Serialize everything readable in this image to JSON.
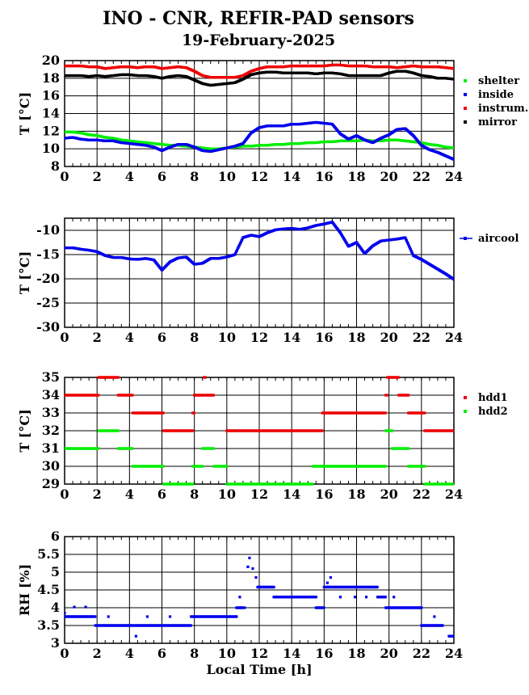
{
  "title": "INO - CNR, REFIR-PAD sensors",
  "subtitle": "19-February-2025",
  "xlabel": "Local Time [h]",
  "chart_data": [
    {
      "type": "scatter",
      "ylabel": "T [°C]",
      "xlim": [
        0,
        24
      ],
      "ylim": [
        8,
        20
      ],
      "xticks": [
        0,
        2,
        4,
        6,
        8,
        10,
        12,
        14,
        16,
        18,
        20,
        22,
        24
      ],
      "yticks": [
        8,
        10,
        12,
        14,
        16,
        18,
        20
      ],
      "grid": true,
      "legend": "right",
      "series": [
        {
          "name": "shelter",
          "color": "#00ee00",
          "x": [
            0,
            0.5,
            1,
            1.5,
            2,
            2.5,
            3,
            3.5,
            4,
            4.5,
            5,
            5.5,
            6,
            6.5,
            7,
            7.5,
            8,
            8.5,
            9,
            9.5,
            10,
            10.5,
            11,
            11.5,
            12,
            12.5,
            13,
            13.5,
            14,
            14.5,
            15,
            15.5,
            16,
            16.5,
            17,
            17.5,
            18,
            18.5,
            19,
            19.5,
            20,
            20.5,
            21,
            21.5,
            22,
            22.5,
            23,
            23.5,
            24
          ],
          "y": [
            11.9,
            11.9,
            11.8,
            11.6,
            11.5,
            11.3,
            11.2,
            11.0,
            10.9,
            10.8,
            10.7,
            10.6,
            10.5,
            10.4,
            10.4,
            10.3,
            10.2,
            10.1,
            10.0,
            10.0,
            10.1,
            10.2,
            10.3,
            10.3,
            10.4,
            10.4,
            10.5,
            10.5,
            10.6,
            10.6,
            10.7,
            10.7,
            10.8,
            10.8,
            10.9,
            10.9,
            10.9,
            11.0,
            10.9,
            10.9,
            11.0,
            11.0,
            10.9,
            10.8,
            10.7,
            10.5,
            10.4,
            10.2,
            10.1
          ]
        },
        {
          "name": "inside",
          "color": "#0000ee",
          "x": [
            0,
            0.5,
            1,
            1.5,
            2,
            2.5,
            3,
            3.5,
            4,
            4.5,
            5,
            5.5,
            6,
            6.5,
            7,
            7.5,
            8,
            8.5,
            9,
            9.5,
            10,
            10.5,
            11,
            11.5,
            12,
            12.5,
            13,
            13.5,
            14,
            14.5,
            15,
            15.5,
            16,
            16.5,
            17,
            17.5,
            18,
            18.5,
            19,
            19.5,
            20,
            20.5,
            21,
            21.5,
            22,
            22.5,
            23,
            23.5,
            24
          ],
          "y": [
            11.2,
            11.3,
            11.1,
            11.0,
            11.0,
            10.9,
            10.9,
            10.7,
            10.6,
            10.5,
            10.4,
            10.2,
            9.8,
            10.2,
            10.5,
            10.5,
            10.2,
            9.8,
            9.7,
            9.9,
            10.1,
            10.3,
            10.6,
            11.8,
            12.4,
            12.6,
            12.6,
            12.6,
            12.8,
            12.8,
            12.9,
            13.0,
            12.9,
            12.8,
            11.7,
            11.1,
            11.5,
            11.0,
            10.7,
            11.2,
            11.6,
            12.2,
            12.3,
            11.5,
            10.4,
            9.9,
            9.6,
            9.2,
            8.8
          ]
        },
        {
          "name": "instrum.",
          "color": "#ee0000",
          "x": [
            0,
            0.5,
            1,
            1.5,
            2,
            2.5,
            3,
            3.5,
            4,
            4.5,
            5,
            5.5,
            6,
            6.5,
            7,
            7.5,
            8,
            8.5,
            9,
            9.5,
            10,
            10.5,
            11,
            11.5,
            12,
            12.5,
            13,
            13.5,
            14,
            14.5,
            15,
            15.5,
            16,
            16.5,
            17,
            17.5,
            18,
            18.5,
            19,
            19.5,
            20,
            20.5,
            21,
            21.5,
            22,
            22.5,
            23,
            23.5,
            24
          ],
          "y": [
            19.4,
            19.4,
            19.4,
            19.3,
            19.3,
            19.1,
            19.2,
            19.3,
            19.3,
            19.2,
            19.3,
            19.3,
            19.1,
            19.2,
            19.3,
            19.2,
            18.8,
            18.3,
            18.1,
            18.1,
            18.1,
            18.1,
            18.3,
            18.8,
            19.1,
            19.3,
            19.3,
            19.3,
            19.4,
            19.4,
            19.4,
            19.4,
            19.4,
            19.5,
            19.5,
            19.4,
            19.4,
            19.4,
            19.3,
            19.3,
            19.3,
            19.2,
            19.3,
            19.4,
            19.3,
            19.3,
            19.3,
            19.2,
            19.1
          ]
        },
        {
          "name": "mirror",
          "color": "#000000",
          "x": [
            0,
            0.5,
            1,
            1.5,
            2,
            2.5,
            3,
            3.5,
            4,
            4.5,
            5,
            5.5,
            6,
            6.5,
            7,
            7.5,
            8,
            8.5,
            9,
            9.5,
            10,
            10.5,
            11,
            11.5,
            12,
            12.5,
            13,
            13.5,
            14,
            14.5,
            15,
            15.5,
            16,
            16.5,
            17,
            17.5,
            18,
            18.5,
            19,
            19.5,
            20,
            20.5,
            21,
            21.5,
            22,
            22.5,
            23,
            23.5,
            24
          ],
          "y": [
            18.3,
            18.3,
            18.3,
            18.2,
            18.3,
            18.2,
            18.3,
            18.4,
            18.4,
            18.3,
            18.3,
            18.2,
            18.0,
            18.2,
            18.3,
            18.2,
            17.8,
            17.4,
            17.2,
            17.3,
            17.4,
            17.5,
            17.9,
            18.4,
            18.6,
            18.7,
            18.7,
            18.6,
            18.6,
            18.6,
            18.6,
            18.5,
            18.6,
            18.6,
            18.5,
            18.3,
            18.3,
            18.3,
            18.3,
            18.3,
            18.6,
            18.8,
            18.8,
            18.6,
            18.3,
            18.2,
            18.0,
            18.0,
            17.9
          ]
        }
      ]
    },
    {
      "type": "scatter",
      "ylabel": "T [°C]",
      "xlim": [
        0,
        24
      ],
      "ylim": [
        -30,
        -7.5
      ],
      "xticks": [
        0,
        2,
        4,
        6,
        8,
        10,
        12,
        14,
        16,
        18,
        20,
        22,
        24
      ],
      "yticks": [
        -30,
        -25,
        -20,
        -15,
        -10
      ],
      "grid": true,
      "legend": "right",
      "series": [
        {
          "name": "aircool",
          "color": "#0000ee",
          "line": true,
          "x": [
            0,
            0.5,
            1,
            1.5,
            2,
            2.5,
            3,
            3.5,
            4,
            4.5,
            5,
            5.5,
            6,
            6.5,
            7,
            7.5,
            8,
            8.5,
            9,
            9.5,
            10,
            10.5,
            11,
            11.5,
            12,
            12.5,
            13,
            13.5,
            14,
            14.5,
            15,
            15.5,
            16,
            16.5,
            17,
            17.5,
            18,
            18.5,
            19,
            19.5,
            20,
            20.5,
            21,
            21.5,
            22,
            22.5,
            23,
            23.5,
            24
          ],
          "y": [
            -13.6,
            -13.6,
            -13.9,
            -14.1,
            -14.4,
            -15.2,
            -15.6,
            -15.6,
            -15.9,
            -16.0,
            -15.8,
            -16.1,
            -18.2,
            -16.5,
            -15.7,
            -15.5,
            -17.0,
            -16.8,
            -15.8,
            -15.8,
            -15.5,
            -15.0,
            -11.5,
            -11.0,
            -11.3,
            -10.5,
            -9.9,
            -9.7,
            -9.6,
            -9.8,
            -9.5,
            -9.0,
            -8.7,
            -8.3,
            -10.5,
            -13.3,
            -12.5,
            -14.8,
            -13.2,
            -12.2,
            -12.0,
            -11.8,
            -11.5,
            -15.2,
            -16.0,
            -17.0,
            -18.0,
            -19.0,
            -20.1
          ]
        }
      ]
    },
    {
      "type": "scatter",
      "ylabel": "T [°C]",
      "xlim": [
        0,
        24
      ],
      "ylim": [
        29,
        35
      ],
      "xticks": [
        0,
        2,
        4,
        6,
        8,
        10,
        12,
        14,
        16,
        18,
        20,
        22,
        24
      ],
      "yticks": [
        29,
        30,
        31,
        32,
        33,
        34,
        35
      ],
      "grid": true,
      "legend": "right",
      "series": [
        {
          "name": "hdd1",
          "color": "#ee0000",
          "segments": [
            [
              0,
              2.1,
              34
            ],
            [
              2.1,
              3.3,
              35
            ],
            [
              3.3,
              4.2,
              34
            ],
            [
              4.2,
              6.1,
              33
            ],
            [
              6.1,
              7.9,
              32
            ],
            [
              7.9,
              8.0,
              33
            ],
            [
              8.0,
              8.6,
              34
            ],
            [
              8.6,
              8.7,
              35
            ],
            [
              8.7,
              9.2,
              34
            ],
            [
              10.0,
              15.9,
              32
            ],
            [
              15.9,
              19.8,
              33
            ],
            [
              19.8,
              19.9,
              34
            ],
            [
              19.9,
              20.6,
              35
            ],
            [
              20.6,
              21.2,
              34
            ],
            [
              21.2,
              22.2,
              33
            ],
            [
              22.2,
              24.0,
              32
            ]
          ]
        },
        {
          "name": "hdd2",
          "color": "#00ee00",
          "segments": [
            [
              0,
              2.1,
              31
            ],
            [
              2.1,
              3.3,
              32
            ],
            [
              3.3,
              4.2,
              31
            ],
            [
              4.2,
              6.1,
              30
            ],
            [
              6.1,
              7.9,
              29
            ],
            [
              7.9,
              8.5,
              30
            ],
            [
              8.5,
              9.2,
              31
            ],
            [
              9.2,
              10.0,
              30
            ],
            [
              10.0,
              15.3,
              29
            ],
            [
              15.3,
              15.9,
              30
            ],
            [
              15.9,
              19.8,
              30
            ],
            [
              19.8,
              20.2,
              32
            ],
            [
              20.2,
              21.2,
              31
            ],
            [
              21.2,
              22.2,
              30
            ],
            [
              22.2,
              24.0,
              29
            ]
          ]
        }
      ]
    },
    {
      "type": "scatter",
      "ylabel": "RH [%]",
      "xlim": [
        0,
        24
      ],
      "ylim": [
        3,
        6
      ],
      "xticks": [
        0,
        2,
        4,
        6,
        8,
        10,
        12,
        14,
        16,
        18,
        20,
        22,
        24
      ],
      "yticks": [
        3,
        3.5,
        4,
        4.5,
        5,
        5.5,
        6
      ],
      "grid": true,
      "legend": "none",
      "series": [
        {
          "name": "",
          "color": "#0000ee",
          "segments": [
            [
              0,
              1.9,
              3.75
            ],
            [
              1.9,
              3.9,
              3.5
            ],
            [
              3.9,
              4.9,
              3.5
            ],
            [
              4.9,
              7.8,
              3.5
            ],
            [
              7.8,
              10.6,
              3.75
            ],
            [
              10.6,
              11.0,
              4.0
            ],
            [
              11.9,
              12.9,
              4.58
            ],
            [
              12.9,
              15.5,
              4.3
            ],
            [
              15.5,
              16.0,
              4.0
            ],
            [
              16.0,
              19.3,
              4.58
            ],
            [
              19.3,
              19.8,
              4.3
            ],
            [
              19.8,
              22.0,
              4.0
            ],
            [
              22.0,
              23.3,
              3.5
            ],
            [
              23.7,
              24.0,
              3.2
            ]
          ],
          "points": [
            [
              0,
              3.85
            ],
            [
              0.6,
              4.02
            ],
            [
              1.3,
              4.02
            ],
            [
              2.7,
              3.75
            ],
            [
              4.4,
              3.2
            ],
            [
              5.1,
              3.75
            ],
            [
              6.5,
              3.75
            ],
            [
              10.8,
              4.3
            ],
            [
              11.1,
              4.0
            ],
            [
              11.3,
              5.15
            ],
            [
              11.4,
              5.4
            ],
            [
              11.6,
              5.1
            ],
            [
              11.8,
              4.85
            ],
            [
              12.3,
              4.58
            ],
            [
              16.2,
              4.7
            ],
            [
              16.4,
              4.85
            ],
            [
              17.0,
              4.3
            ],
            [
              17.9,
              4.3
            ],
            [
              18.6,
              4.3
            ],
            [
              19.6,
              4.3
            ],
            [
              20.3,
              4.3
            ],
            [
              22.8,
              3.75
            ],
            [
              23.3,
              3.5
            ]
          ]
        }
      ]
    }
  ]
}
